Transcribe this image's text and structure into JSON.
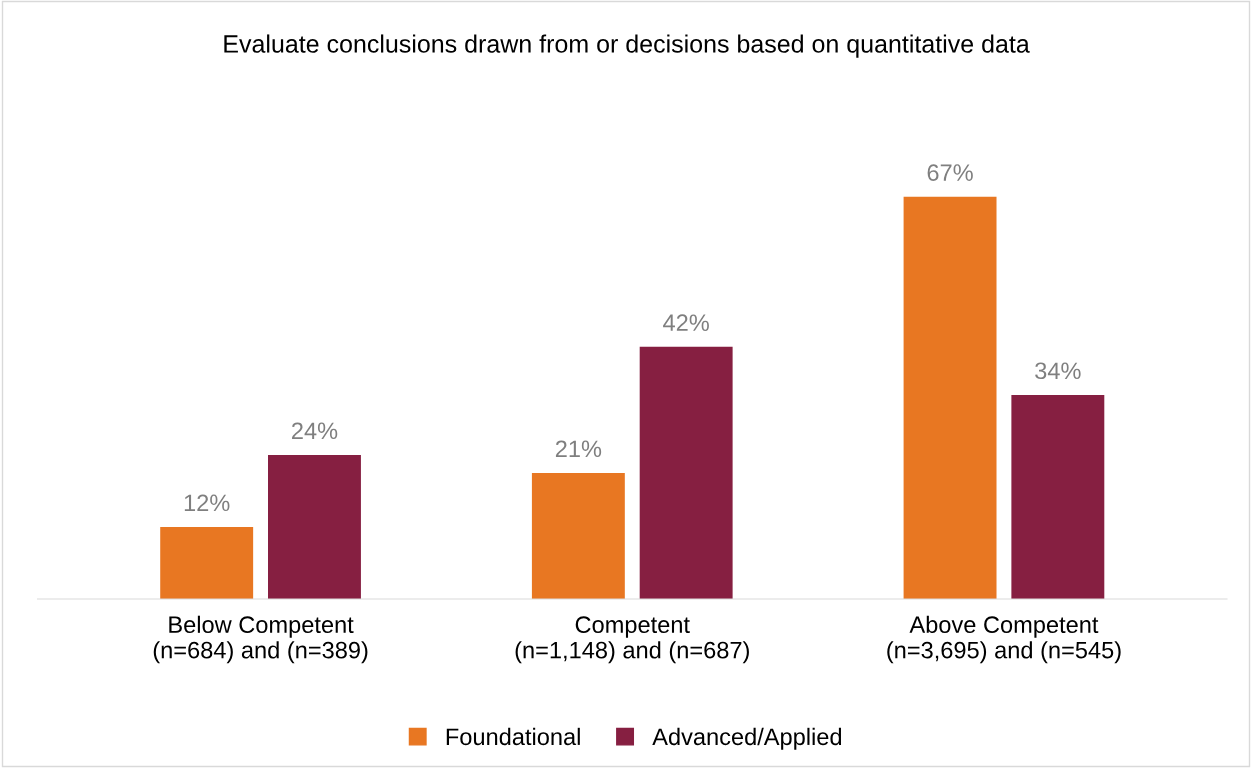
{
  "chart_data": {
    "type": "bar",
    "title": "Evaluate conclusions drawn from or decisions based on quantitative data",
    "categories": [
      "Below Competent\n(n=684) and (n=389)",
      "Competent\n(n=1,148) and (n=687)",
      "Above Competent\n(n=3,695) and (n=545)"
    ],
    "series": [
      {
        "name": "Foundational",
        "color": "#e87722",
        "values": [
          12,
          21,
          67
        ],
        "value_labels": [
          "12%",
          "21%",
          "67%"
        ]
      },
      {
        "name": "Advanced/Applied",
        "color": "#861f41",
        "values": [
          24,
          42,
          34
        ],
        "value_labels": [
          "24%",
          "42%",
          "34%"
        ]
      }
    ],
    "tick_labels": "x",
    "grid": false,
    "legend": "bottom"
  }
}
